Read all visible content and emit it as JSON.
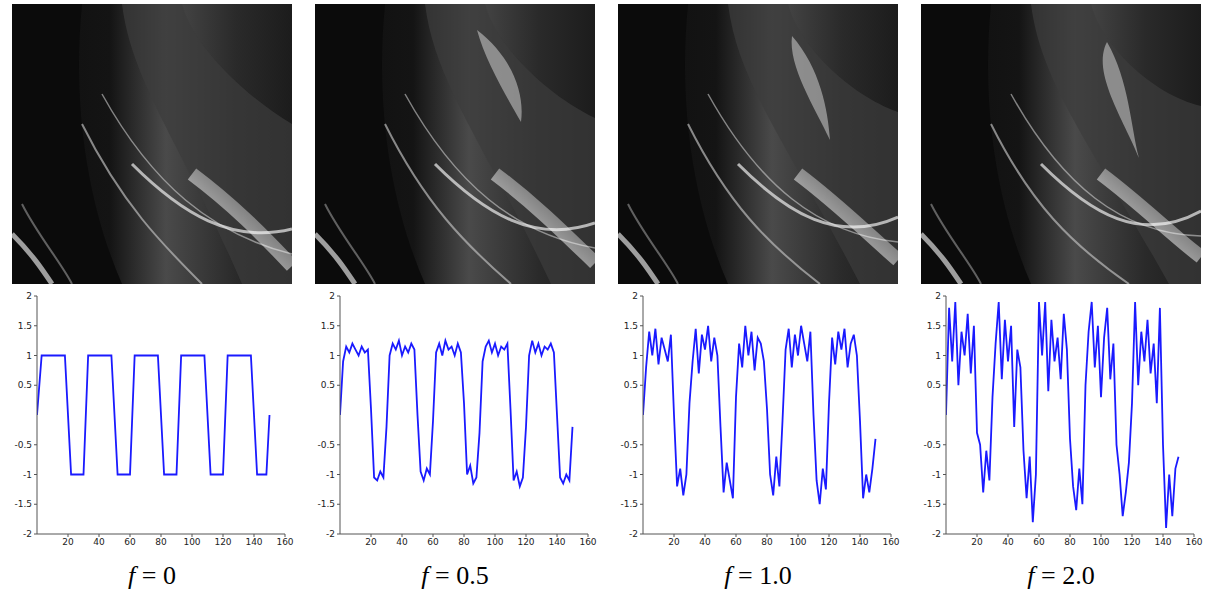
{
  "chart_data": [
    {
      "type": "line",
      "title": "f = 0",
      "xlim": [
        0,
        160
      ],
      "xticks": [
        20,
        40,
        60,
        80,
        100,
        120,
        140,
        160
      ],
      "ylim": [
        -2,
        2
      ],
      "yticks": [
        -2,
        -1.5,
        -1,
        -0.5,
        0.5,
        1,
        1.5,
        2
      ],
      "grid": false,
      "color": "#1a1aff",
      "x": [
        0,
        3,
        18,
        22,
        30,
        33,
        48,
        52,
        60,
        63,
        78,
        82,
        90,
        93,
        108,
        112,
        120,
        123,
        138,
        142,
        148,
        150
      ],
      "values": [
        0,
        1,
        1,
        -1,
        -1,
        1,
        1,
        -1,
        -1,
        1,
        1,
        -1,
        -1,
        1,
        1,
        -1,
        -1,
        1,
        1,
        -1,
        -1,
        0
      ]
    },
    {
      "type": "line",
      "title": "f = 0.5",
      "xlim": [
        0,
        160
      ],
      "xticks": [
        20,
        40,
        60,
        80,
        100,
        120,
        140,
        160
      ],
      "ylim": [
        -2,
        2
      ],
      "yticks": [
        -2,
        -1.5,
        -1,
        -0.5,
        0.5,
        1,
        1.5,
        2
      ],
      "grid": false,
      "color": "#1a1aff",
      "x": [
        0,
        2,
        4,
        6,
        8,
        10,
        12,
        14,
        16,
        18,
        20,
        22,
        24,
        26,
        28,
        30,
        32,
        34,
        36,
        38,
        40,
        42,
        44,
        46,
        48,
        50,
        52,
        54,
        56,
        58,
        60,
        62,
        64,
        66,
        68,
        70,
        72,
        74,
        76,
        78,
        80,
        82,
        84,
        86,
        88,
        90,
        92,
        94,
        96,
        98,
        100,
        102,
        104,
        106,
        108,
        110,
        112,
        114,
        116,
        118,
        120,
        122,
        124,
        126,
        128,
        130,
        132,
        134,
        136,
        138,
        140,
        142,
        144,
        146,
        148,
        150
      ],
      "values": [
        0.0,
        0.9,
        1.15,
        1.05,
        1.2,
        1.1,
        1.0,
        1.15,
        1.05,
        1.1,
        0.1,
        -1.05,
        -1.1,
        -0.95,
        -1.05,
        -0.2,
        1.0,
        1.2,
        1.1,
        1.25,
        1.0,
        1.15,
        1.05,
        1.2,
        1.1,
        0.0,
        -0.95,
        -1.1,
        -0.9,
        -1.0,
        -0.1,
        1.05,
        1.2,
        1.0,
        1.25,
        1.1,
        1.15,
        1.0,
        1.2,
        1.05,
        0.2,
        -1.0,
        -0.85,
        -1.15,
        -1.05,
        -0.3,
        0.9,
        1.15,
        1.25,
        1.05,
        1.2,
        1.0,
        1.15,
        1.1,
        1.2,
        0.1,
        -1.1,
        -0.95,
        -1.2,
        -1.05,
        -0.2,
        1.0,
        1.25,
        1.05,
        1.2,
        1.0,
        1.15,
        1.1,
        1.2,
        1.05,
        0.0,
        -1.05,
        -1.15,
        -1.0,
        -1.1,
        -0.2
      ]
    },
    {
      "type": "line",
      "title": "f = 1.0",
      "xlim": [
        0,
        160
      ],
      "xticks": [
        20,
        40,
        60,
        80,
        100,
        120,
        140,
        160
      ],
      "ylim": [
        -2,
        2
      ],
      "yticks": [
        -2,
        -1.5,
        -1,
        -0.5,
        0.5,
        1,
        1.5,
        2
      ],
      "grid": false,
      "color": "#1a1aff",
      "x": [
        0,
        2,
        4,
        6,
        8,
        10,
        12,
        14,
        16,
        18,
        20,
        22,
        24,
        26,
        28,
        30,
        32,
        34,
        36,
        38,
        40,
        42,
        44,
        46,
        48,
        50,
        52,
        54,
        56,
        58,
        60,
        62,
        64,
        66,
        68,
        70,
        72,
        74,
        76,
        78,
        80,
        82,
        84,
        86,
        88,
        90,
        92,
        94,
        96,
        98,
        100,
        102,
        104,
        106,
        108,
        110,
        112,
        114,
        116,
        118,
        120,
        122,
        124,
        126,
        128,
        130,
        132,
        134,
        136,
        138,
        140,
        142,
        144,
        146,
        148,
        150
      ],
      "values": [
        0.0,
        0.8,
        1.4,
        1.0,
        1.45,
        0.85,
        1.3,
        1.1,
        0.9,
        1.35,
        0.0,
        -1.2,
        -0.9,
        -1.35,
        -1.0,
        0.2,
        0.9,
        1.45,
        0.7,
        1.35,
        1.1,
        1.5,
        0.9,
        1.3,
        1.0,
        -0.2,
        -1.3,
        -0.8,
        -1.1,
        -1.4,
        0.3,
        1.2,
        0.8,
        1.5,
        1.0,
        1.4,
        0.75,
        1.3,
        1.2,
        0.9,
        0.1,
        -1.0,
        -1.35,
        -0.7,
        -1.2,
        -0.1,
        1.1,
        1.45,
        0.8,
        1.35,
        1.0,
        1.5,
        1.2,
        0.9,
        1.4,
        0.0,
        -1.1,
        -1.5,
        -0.9,
        -1.25,
        0.2,
        1.3,
        0.85,
        1.4,
        1.1,
        1.45,
        0.8,
        1.2,
        1.35,
        1.0,
        -0.1,
        -1.4,
        -1.0,
        -1.3,
        -0.9,
        -0.4
      ]
    },
    {
      "type": "line",
      "title": "f = 2.0",
      "xlim": [
        0,
        160
      ],
      "xticks": [
        20,
        40,
        60,
        80,
        100,
        120,
        140,
        160
      ],
      "ylim": [
        -2,
        2
      ],
      "yticks": [
        -2,
        -1.5,
        -1,
        -0.5,
        0.5,
        1,
        1.5,
        2
      ],
      "grid": false,
      "color": "#1a1aff",
      "x": [
        0,
        2,
        4,
        6,
        8,
        10,
        12,
        14,
        16,
        18,
        20,
        22,
        24,
        26,
        28,
        30,
        32,
        34,
        36,
        38,
        40,
        42,
        44,
        46,
        48,
        50,
        52,
        54,
        56,
        58,
        60,
        62,
        64,
        66,
        68,
        70,
        72,
        74,
        76,
        78,
        80,
        82,
        84,
        86,
        88,
        90,
        92,
        94,
        96,
        98,
        100,
        102,
        104,
        106,
        108,
        110,
        112,
        114,
        116,
        118,
        120,
        122,
        124,
        126,
        128,
        130,
        132,
        134,
        136,
        138,
        140,
        142,
        144,
        146,
        148,
        150
      ],
      "values": [
        0.0,
        1.8,
        0.9,
        1.9,
        0.5,
        1.4,
        1.0,
        1.7,
        0.7,
        1.5,
        -0.3,
        -0.5,
        -1.3,
        -0.6,
        -1.1,
        0.3,
        1.2,
        1.9,
        0.6,
        1.6,
        0.9,
        1.5,
        -0.2,
        1.1,
        0.8,
        -0.6,
        -1.4,
        -0.7,
        -1.8,
        -1.0,
        1.9,
        1.0,
        1.9,
        0.4,
        1.6,
        0.9,
        1.3,
        0.6,
        1.7,
        1.1,
        -0.4,
        -1.2,
        -1.6,
        -0.9,
        -1.5,
        0.5,
        1.4,
        1.9,
        0.8,
        1.5,
        0.3,
        1.3,
        1.8,
        0.6,
        1.2,
        -0.5,
        -1.0,
        -1.7,
        -1.3,
        -0.8,
        0.2,
        1.9,
        0.5,
        1.4,
        0.9,
        1.6,
        0.7,
        1.2,
        0.2,
        1.8,
        -0.5,
        -1.9,
        -1.0,
        -1.7,
        -0.9,
        -0.7
      ]
    }
  ]
}
